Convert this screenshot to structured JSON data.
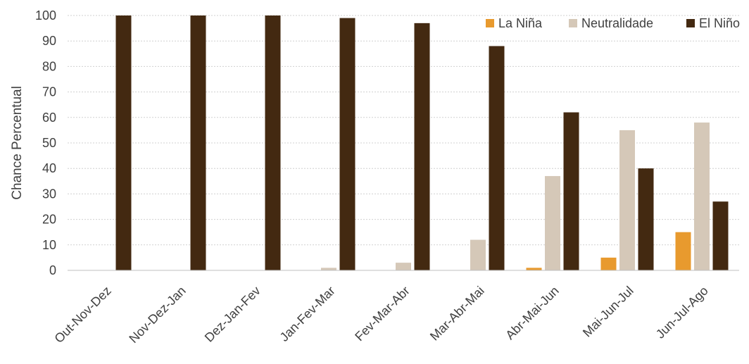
{
  "chart_data": {
    "type": "bar",
    "title": "",
    "xlabel": "",
    "ylabel": "Chance Percentual",
    "ylim": [
      0,
      100
    ],
    "yticks": [
      0,
      10,
      20,
      30,
      40,
      50,
      60,
      70,
      80,
      90,
      100
    ],
    "grid": true,
    "legend_position": "top-right",
    "categories": [
      "Out-Nov-Dez",
      "Nov-Dez-Jan",
      "Dez-Jan-Fev",
      "Jan-Fev-Mar",
      "Fev-Mar-Abr",
      "Mar-Abr-Mai",
      "Abr-Mai-Jun",
      "Mai-Jun-Jul",
      "Jun-Jul-Ago"
    ],
    "series": [
      {
        "name": "La Niña",
        "color": "#e89a2e",
        "values": [
          0,
          0,
          0,
          0,
          0,
          0,
          1,
          5,
          15
        ]
      },
      {
        "name": "Neutralidade",
        "color": "#d5c8b8",
        "values": [
          0,
          0,
          0,
          1,
          3,
          12,
          37,
          55,
          58
        ]
      },
      {
        "name": "El Niño",
        "color": "#432911",
        "values": [
          100,
          100,
          100,
          99,
          97,
          88,
          62,
          40,
          27
        ]
      }
    ]
  }
}
